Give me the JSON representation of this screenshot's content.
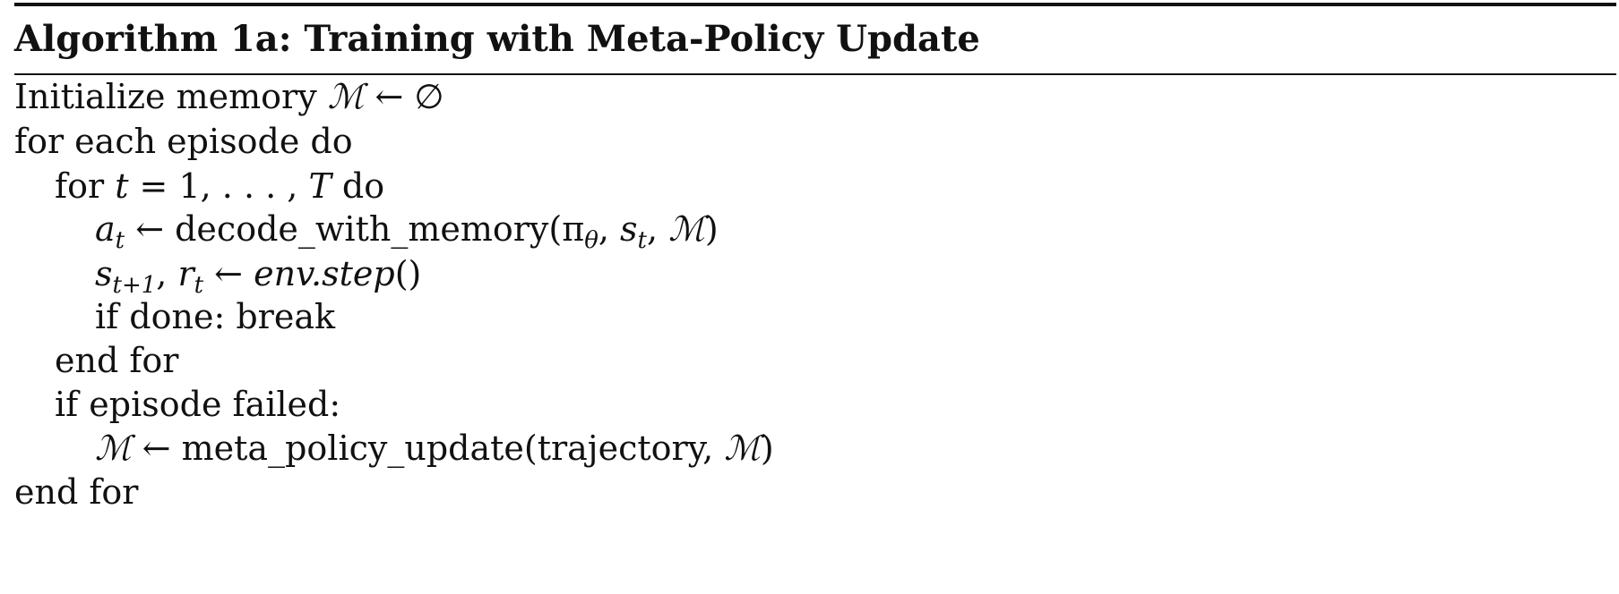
{
  "algorithm": {
    "caption": "Algorithm 1a: Training with Meta-Policy Update",
    "lines": [
      {
        "text_a": "Initialize memory ",
        "sym_M": "ℳ",
        "arrow": " ← ",
        "empty": "∅"
      },
      {
        "text": "for each episode do"
      },
      {
        "kw_for": "for ",
        "var_t": "t",
        "range": " = 1, . . . , ",
        "var_T": "T",
        "kw_do": " do"
      },
      {
        "var_a": "a",
        "sub_t": "t",
        "arrow": " ← ",
        "fn": "decode_with_memory(",
        "pi": "π",
        "sub_theta": "θ",
        "sep1": ", ",
        "var_s": "s",
        "sub_t2": "t",
        "sep2": ", ",
        "sym_M": "ℳ",
        "close": ")"
      },
      {
        "var_s": "s",
        "sub_t1": "t+1",
        "sep": ", ",
        "var_r": "r",
        "sub_t": "t",
        "arrow": " ← ",
        "env_step": "env.step",
        "parens": "()"
      },
      {
        "text": "if done: break"
      },
      {
        "text": "end for"
      },
      {
        "text": "if episode failed:"
      },
      {
        "sym_M": "ℳ",
        "arrow": " ← ",
        "fn": "meta_policy_update(trajectory, ",
        "sym_M2": "ℳ",
        "close": ")"
      },
      {
        "text": "end for"
      }
    ]
  }
}
